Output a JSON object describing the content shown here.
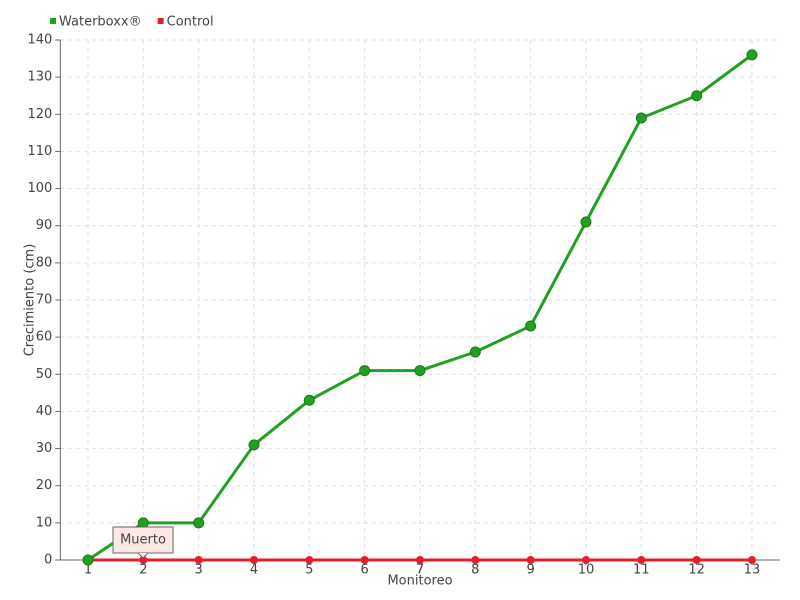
{
  "chart_data": {
    "type": "line",
    "x_label": "Monitoreo",
    "y_label": "Crecimiento (cm)",
    "categories": [
      "1",
      "2",
      "3",
      "4",
      "5",
      "6",
      "7",
      "8",
      "9",
      "10",
      "11",
      "12",
      "13"
    ],
    "series": [
      {
        "name": "Waterboxx®",
        "color": "#22a022",
        "values": [
          0,
          10,
          10,
          31,
          43,
          51,
          51,
          56,
          63,
          91,
          119,
          125,
          136
        ]
      },
      {
        "name": "Control",
        "color": "#e0202a",
        "values": [
          0,
          0,
          0,
          0,
          0,
          0,
          0,
          0,
          0,
          0,
          0,
          0,
          0
        ]
      }
    ],
    "ylim": [
      0,
      140
    ],
    "yticks": [
      0,
      10,
      20,
      30,
      40,
      50,
      60,
      70,
      80,
      90,
      100,
      110,
      120,
      130,
      140
    ],
    "grid": true,
    "legend": "top-left",
    "tooltip": "Muerto"
  }
}
